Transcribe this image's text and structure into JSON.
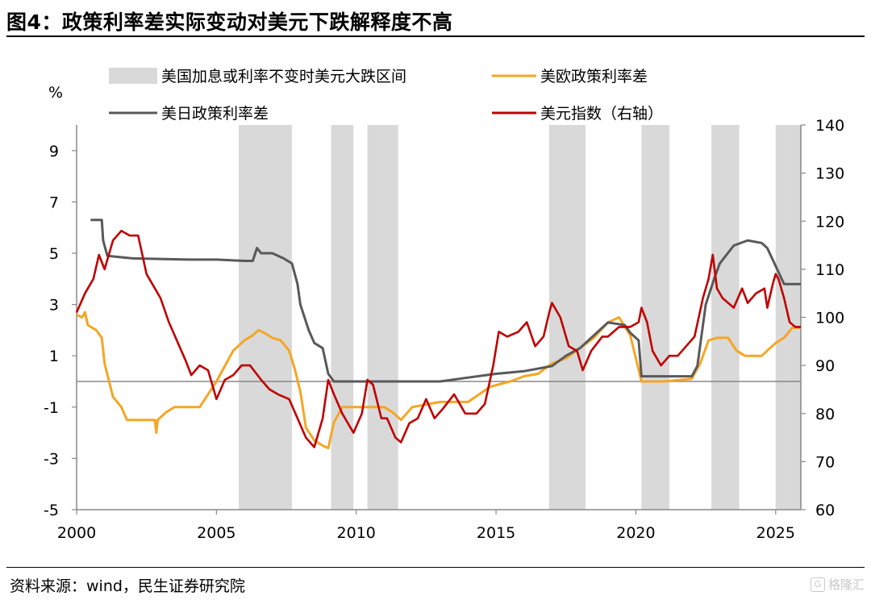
{
  "figure": {
    "title": "图4：政策利率差实际变动对美元下跌解释度不高",
    "source": "资料来源：wind，民生证券研究院",
    "watermark": "格隆汇"
  },
  "chart_data": {
    "type": "line",
    "title": "图4：政策利率差实际变动对美元下跌解释度不高",
    "left_axis": {
      "unit_label": "%",
      "range": [
        -5,
        10
      ],
      "ticks": [
        "9",
        "7",
        "5",
        "3",
        "1",
        "-1",
        "-3",
        "-5"
      ],
      "tick_values": [
        9,
        7,
        5,
        3,
        1,
        -1,
        -3,
        -5
      ]
    },
    "right_axis": {
      "range": [
        60,
        140
      ],
      "ticks": [
        "140",
        "130",
        "120",
        "110",
        "100",
        "90",
        "80",
        "70",
        "60"
      ],
      "tick_values": [
        140,
        130,
        120,
        110,
        100,
        90,
        80,
        70,
        60
      ]
    },
    "x_axis": {
      "range": [
        2000,
        2025.9
      ],
      "ticks": [
        "2000",
        "2005",
        "2010",
        "2015",
        "2020",
        "2025"
      ],
      "tick_values": [
        2000,
        2005,
        2010,
        2015,
        2020,
        2025
      ]
    },
    "legend": [
      {
        "label": "美国加息或利率不变时美元大跌区间",
        "kind": "area",
        "color": "#d9d9d9"
      },
      {
        "label": "美欧政策利率差",
        "kind": "line",
        "color": "#f5a623"
      },
      {
        "label": "美日政策利率差",
        "kind": "line",
        "color": "#595959"
      },
      {
        "label": "美元指数（右轴）",
        "kind": "line",
        "color": "#c00000"
      }
    ],
    "shaded_regions": [
      [
        2005.8,
        2007.7
      ],
      [
        2009.1,
        2009.9
      ],
      [
        2010.4,
        2011.5
      ],
      [
        2016.9,
        2018.2
      ],
      [
        2020.2,
        2021.2
      ],
      [
        2022.7,
        2023.7
      ],
      [
        2025.0,
        2025.9
      ]
    ],
    "series": [
      {
        "name": "美欧政策利率差",
        "axis": "left",
        "color": "#f5a623",
        "points": [
          [
            2000.0,
            2.6
          ],
          [
            2000.2,
            2.5
          ],
          [
            2000.3,
            2.7
          ],
          [
            2000.4,
            2.2
          ],
          [
            2000.7,
            2.0
          ],
          [
            2000.9,
            1.7
          ],
          [
            2001.0,
            0.7
          ],
          [
            2001.3,
            -0.6
          ],
          [
            2001.6,
            -1.0
          ],
          [
            2001.8,
            -1.5
          ],
          [
            2002.0,
            -1.5
          ],
          [
            2002.5,
            -1.5
          ],
          [
            2002.8,
            -1.5
          ],
          [
            2002.85,
            -2.0
          ],
          [
            2002.9,
            -1.5
          ],
          [
            2003.2,
            -1.2
          ],
          [
            2003.5,
            -1.0
          ],
          [
            2004.0,
            -1.0
          ],
          [
            2004.4,
            -1.0
          ],
          [
            2004.7,
            -0.5
          ],
          [
            2005.0,
            0.0
          ],
          [
            2005.3,
            0.6
          ],
          [
            2005.6,
            1.2
          ],
          [
            2006.0,
            1.6
          ],
          [
            2006.3,
            1.8
          ],
          [
            2006.5,
            2.0
          ],
          [
            2006.7,
            1.9
          ],
          [
            2007.0,
            1.7
          ],
          [
            2007.3,
            1.6
          ],
          [
            2007.6,
            1.2
          ],
          [
            2007.8,
            0.5
          ],
          [
            2008.0,
            -0.4
          ],
          [
            2008.2,
            -1.8
          ],
          [
            2008.5,
            -2.3
          ],
          [
            2008.8,
            -2.5
          ],
          [
            2009.0,
            -2.6
          ],
          [
            2009.2,
            -1.6
          ],
          [
            2009.5,
            -1.0
          ],
          [
            2010.0,
            -1.0
          ],
          [
            2011.0,
            -1.0
          ],
          [
            2011.3,
            -1.2
          ],
          [
            2011.6,
            -1.5
          ],
          [
            2012.0,
            -1.0
          ],
          [
            2013.0,
            -0.8
          ],
          [
            2014.0,
            -0.8
          ],
          [
            2014.8,
            -0.2
          ],
          [
            2015.5,
            0.0
          ],
          [
            2016.0,
            0.2
          ],
          [
            2016.5,
            0.3
          ],
          [
            2017.0,
            0.7
          ],
          [
            2017.5,
            0.9
          ],
          [
            2018.0,
            1.3
          ],
          [
            2018.5,
            1.7
          ],
          [
            2019.0,
            2.3
          ],
          [
            2019.4,
            2.5
          ],
          [
            2019.8,
            1.8
          ],
          [
            2020.2,
            0.0
          ],
          [
            2021.0,
            0.0
          ],
          [
            2022.0,
            0.1
          ],
          [
            2022.3,
            0.7
          ],
          [
            2022.6,
            1.6
          ],
          [
            2022.9,
            1.7
          ],
          [
            2023.3,
            1.7
          ],
          [
            2023.6,
            1.2
          ],
          [
            2023.9,
            1.0
          ],
          [
            2024.5,
            1.0
          ],
          [
            2024.7,
            1.2
          ],
          [
            2025.0,
            1.5
          ],
          [
            2025.3,
            1.7
          ],
          [
            2025.6,
            2.1
          ],
          [
            2025.9,
            2.1
          ]
        ]
      },
      {
        "name": "美日政策利率差",
        "axis": "left",
        "color": "#595959",
        "points": [
          [
            2000.5,
            6.3
          ],
          [
            2000.9,
            6.3
          ],
          [
            2000.95,
            5.5
          ],
          [
            2001.1,
            4.9
          ],
          [
            2002.0,
            4.8
          ],
          [
            2004.0,
            4.75
          ],
          [
            2005.0,
            4.75
          ],
          [
            2006.0,
            4.7
          ],
          [
            2006.3,
            4.7
          ],
          [
            2006.45,
            5.2
          ],
          [
            2006.6,
            5.0
          ],
          [
            2007.0,
            5.0
          ],
          [
            2007.4,
            4.8
          ],
          [
            2007.7,
            4.6
          ],
          [
            2007.9,
            3.8
          ],
          [
            2008.0,
            3.0
          ],
          [
            2008.3,
            2.0
          ],
          [
            2008.5,
            1.5
          ],
          [
            2008.8,
            1.3
          ],
          [
            2009.0,
            0.3
          ],
          [
            2009.2,
            0.0
          ],
          [
            2012.0,
            0.0
          ],
          [
            2013.0,
            0.0
          ],
          [
            2014.0,
            0.15
          ],
          [
            2015.0,
            0.3
          ],
          [
            2016.0,
            0.4
          ],
          [
            2017.0,
            0.6
          ],
          [
            2017.5,
            1.0
          ],
          [
            2018.0,
            1.3
          ],
          [
            2018.5,
            1.8
          ],
          [
            2019.0,
            2.3
          ],
          [
            2019.6,
            2.2
          ],
          [
            2019.8,
            1.9
          ],
          [
            2020.1,
            1.6
          ],
          [
            2020.2,
            0.2
          ],
          [
            2021.0,
            0.2
          ],
          [
            2022.0,
            0.2
          ],
          [
            2022.2,
            0.6
          ],
          [
            2022.5,
            3.0
          ],
          [
            2022.8,
            4.0
          ],
          [
            2023.0,
            4.6
          ],
          [
            2023.5,
            5.3
          ],
          [
            2024.0,
            5.5
          ],
          [
            2024.5,
            5.4
          ],
          [
            2024.7,
            5.2
          ],
          [
            2025.0,
            4.5
          ],
          [
            2025.3,
            3.8
          ],
          [
            2025.9,
            3.8
          ]
        ]
      },
      {
        "name": "美元指数（右轴）",
        "axis": "right",
        "color": "#c00000",
        "points": [
          [
            2000.0,
            101
          ],
          [
            2000.3,
            105
          ],
          [
            2000.6,
            108
          ],
          [
            2000.8,
            113
          ],
          [
            2001.0,
            110
          ],
          [
            2001.3,
            116
          ],
          [
            2001.6,
            118
          ],
          [
            2001.9,
            117
          ],
          [
            2002.2,
            117
          ],
          [
            2002.5,
            109
          ],
          [
            2002.8,
            106
          ],
          [
            2003.0,
            104
          ],
          [
            2003.3,
            99
          ],
          [
            2003.6,
            95
          ],
          [
            2003.9,
            91
          ],
          [
            2004.1,
            88
          ],
          [
            2004.4,
            90
          ],
          [
            2004.7,
            89
          ],
          [
            2005.0,
            83
          ],
          [
            2005.3,
            87
          ],
          [
            2005.6,
            88
          ],
          [
            2005.9,
            90
          ],
          [
            2006.2,
            90
          ],
          [
            2006.6,
            87
          ],
          [
            2006.9,
            85
          ],
          [
            2007.2,
            84
          ],
          [
            2007.6,
            83
          ],
          [
            2007.9,
            79
          ],
          [
            2008.2,
            75
          ],
          [
            2008.5,
            73
          ],
          [
            2008.8,
            79
          ],
          [
            2009.0,
            87
          ],
          [
            2009.2,
            84
          ],
          [
            2009.5,
            80
          ],
          [
            2009.9,
            76
          ],
          [
            2010.2,
            80
          ],
          [
            2010.4,
            87
          ],
          [
            2010.6,
            86
          ],
          [
            2010.9,
            79
          ],
          [
            2011.1,
            79
          ],
          [
            2011.4,
            75
          ],
          [
            2011.6,
            74
          ],
          [
            2011.9,
            78
          ],
          [
            2012.2,
            79
          ],
          [
            2012.5,
            83
          ],
          [
            2012.8,
            79
          ],
          [
            2013.1,
            81
          ],
          [
            2013.5,
            84
          ],
          [
            2013.9,
            80
          ],
          [
            2014.3,
            80
          ],
          [
            2014.6,
            82
          ],
          [
            2014.9,
            90
          ],
          [
            2015.1,
            97
          ],
          [
            2015.4,
            96
          ],
          [
            2015.8,
            97
          ],
          [
            2016.1,
            99
          ],
          [
            2016.4,
            94
          ],
          [
            2016.7,
            96
          ],
          [
            2016.9,
            101
          ],
          [
            2017.0,
            103
          ],
          [
            2017.3,
            100
          ],
          [
            2017.6,
            94
          ],
          [
            2017.9,
            93
          ],
          [
            2018.1,
            89
          ],
          [
            2018.4,
            93
          ],
          [
            2018.8,
            96
          ],
          [
            2019.0,
            96
          ],
          [
            2019.4,
            98
          ],
          [
            2019.8,
            98
          ],
          [
            2020.1,
            99
          ],
          [
            2020.2,
            102
          ],
          [
            2020.4,
            99
          ],
          [
            2020.6,
            93
          ],
          [
            2020.9,
            90
          ],
          [
            2021.2,
            92
          ],
          [
            2021.5,
            92
          ],
          [
            2021.8,
            94
          ],
          [
            2022.1,
            96
          ],
          [
            2022.4,
            104
          ],
          [
            2022.6,
            108
          ],
          [
            2022.75,
            113
          ],
          [
            2022.9,
            106
          ],
          [
            2023.1,
            104
          ],
          [
            2023.5,
            102
          ],
          [
            2023.8,
            106
          ],
          [
            2024.0,
            103
          ],
          [
            2024.3,
            105
          ],
          [
            2024.6,
            106
          ],
          [
            2024.7,
            102
          ],
          [
            2024.9,
            107
          ],
          [
            2025.0,
            109
          ],
          [
            2025.1,
            108
          ],
          [
            2025.3,
            104
          ],
          [
            2025.5,
            99
          ],
          [
            2025.7,
            98
          ],
          [
            2025.9,
            98
          ]
        ]
      }
    ]
  }
}
